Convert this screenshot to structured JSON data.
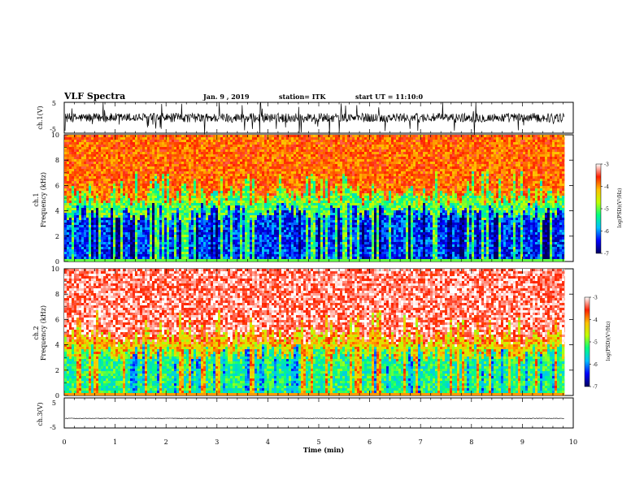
{
  "header": {
    "title": "VLF Spectra",
    "date": "Jan. 9 , 2019",
    "station": "station= ITK",
    "start": "start UT = 11:10:0"
  },
  "chart_data": [
    {
      "type": "line",
      "panel": "ch1-waveform",
      "ylabel": "ch.1(V)",
      "ylim": [
        -5,
        5
      ],
      "yticks": [
        "5",
        "-5"
      ],
      "xlim": [
        0,
        10
      ],
      "description_level": {
        "baseline_v": 0,
        "typical_amplitude_v": 1.5,
        "max_spike_v": 5
      }
    },
    {
      "type": "heatmap",
      "panel": "ch1-spectrogram",
      "ylabel_line1": "ch.1",
      "ylabel_line2": "Frequency (kHz)",
      "ylim": [
        0,
        10
      ],
      "yticks": [
        "0",
        "2",
        "4",
        "6",
        "8",
        "10"
      ],
      "xlim": [
        0,
        9.83
      ],
      "transition_khz": 4.5,
      "low_band_logpsd": -6.3,
      "high_band_logpsd": -3.8,
      "colorbar": {
        "min": -7,
        "max": -3,
        "ticks": [
          "-3",
          "-4",
          "-5",
          "-6",
          "-7"
        ],
        "label": "log(PSD)(V²/Hz)"
      }
    },
    {
      "type": "heatmap",
      "panel": "ch2-spectrogram",
      "ylabel_line1": "ch.2",
      "ylabel_line2": "Frequency (kHz)",
      "ylim": [
        0,
        10
      ],
      "yticks": [
        "0",
        "2",
        "4",
        "6",
        "8",
        "10"
      ],
      "xlim": [
        0,
        9.83
      ],
      "transition_khz": 4.0,
      "low_band_logpsd": -5.3,
      "high_band_logpsd": -3.3,
      "colorbar": {
        "min": -7,
        "max": -3,
        "ticks": [
          "-3",
          "-4",
          "-5",
          "-6",
          "-7"
        ],
        "label": "log(PSD)(V²/Hz)"
      }
    },
    {
      "type": "line",
      "panel": "ch3-waveform",
      "ylabel": "ch.3(V)",
      "ylim": [
        -5,
        5
      ],
      "yticks": [
        "5",
        "-5"
      ],
      "xlim": [
        0,
        10
      ],
      "description_level": {
        "baseline_v": -1.8,
        "typical_amplitude_v": 0.1
      }
    }
  ],
  "xaxis": {
    "label": "Time (min)",
    "ticks": [
      "0",
      "1",
      "2",
      "3",
      "4",
      "5",
      "6",
      "7",
      "8",
      "9",
      "10"
    ],
    "range": [
      0,
      10
    ]
  },
  "colors": {
    "line": "#000000",
    "axis": "#000000",
    "colormap": [
      "#000060",
      "#0000ff",
      "#00c0ff",
      "#00ff80",
      "#c0ff00",
      "#ffc000",
      "#ff2000",
      "#ffffff"
    ]
  }
}
